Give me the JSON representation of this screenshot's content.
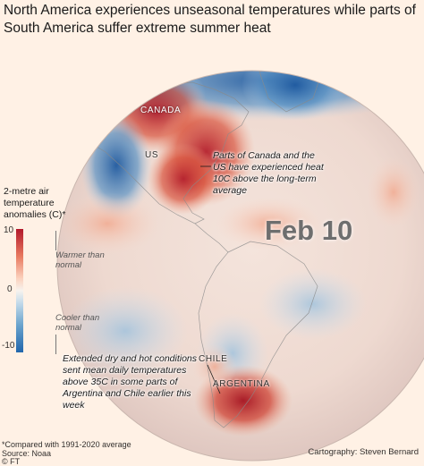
{
  "title": "North America experiences unseasonal temperatures while parts of South America suffer extreme summer heat",
  "date_label": "Feb 10",
  "labels": {
    "canada": "CANADA",
    "us": "US",
    "chile": "CHILE",
    "argentina": "ARGENTINA"
  },
  "annotations": {
    "north": "Parts of Canada and the US have experienced heat 10C above the long-term average",
    "south": "Extended dry and hot conditions sent mean daily temperatures above 35C in some parts of Argentina and Chile earlier this week"
  },
  "legend": {
    "title": "2-metre air temperature anomalies (C)*",
    "ticks": [
      "10",
      "0",
      "-10"
    ],
    "warmer": "Warmer than normal",
    "cooler": "Cooler than normal",
    "scale_min": -10,
    "scale_max": 10,
    "colors": {
      "warm": "#b2182b",
      "neutral": "#f7f3ee",
      "cool": "#2166ac"
    }
  },
  "footer": {
    "note": "*Compared with 1991-2020 average",
    "source": "Source: Noaa",
    "ft": "© FT"
  },
  "credit": "Cartography: Steven Bernard"
}
